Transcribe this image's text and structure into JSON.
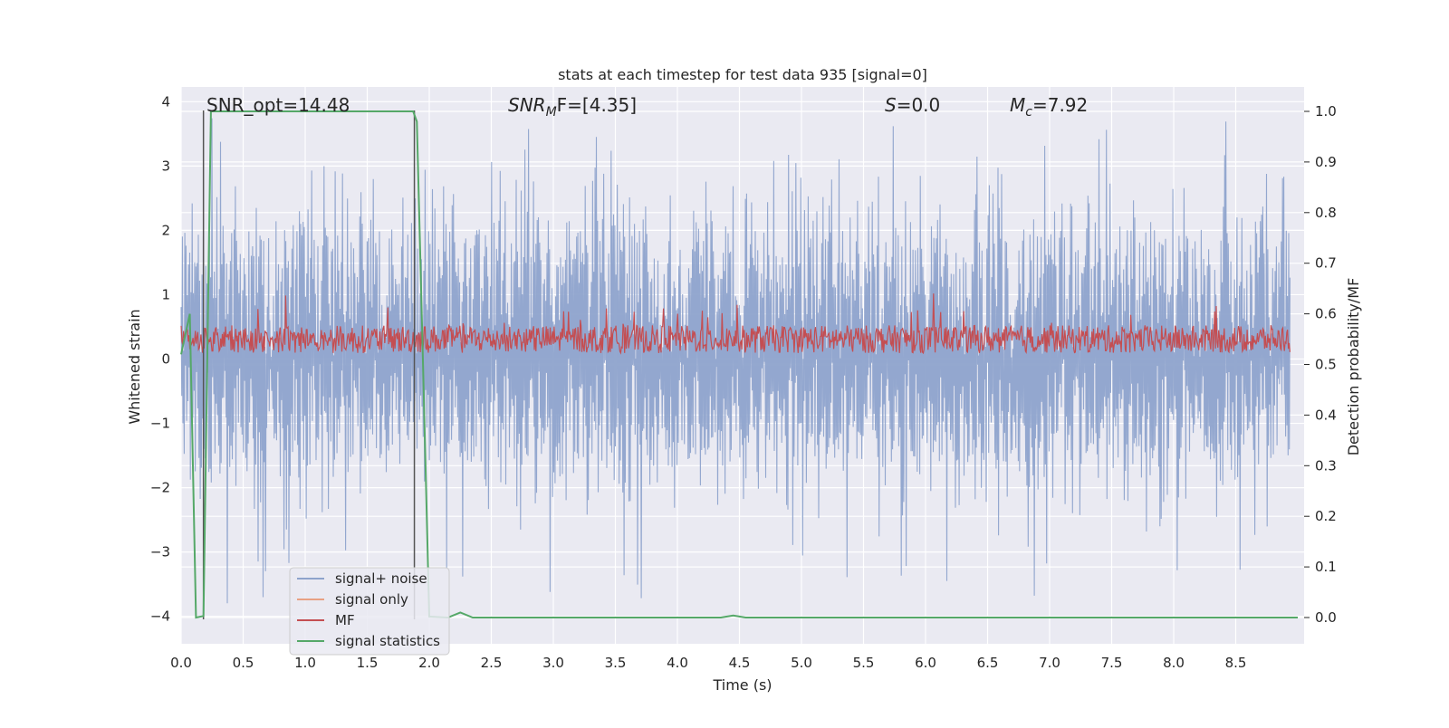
{
  "chart_data": {
    "type": "line",
    "title": "stats at each timestep for test data 935 [signal=0]",
    "xlabel": "Time (s)",
    "ylabel_left": "Whitened strain",
    "ylabel_right": "Detection probability/MF",
    "xlim": [
      0.0,
      9.0
    ],
    "ylim_left": [
      -4.2,
      4.2
    ],
    "ylim_right": [
      -0.05,
      1.04
    ],
    "x_ticks": [
      0.0,
      0.5,
      1.0,
      1.5,
      2.0,
      2.5,
      3.0,
      3.5,
      4.0,
      4.5,
      5.0,
      5.5,
      6.0,
      6.5,
      7.0,
      7.5,
      8.0,
      8.5
    ],
    "x_tick_labels": [
      "0.0",
      "0.5",
      "1.0",
      "1.5",
      "2.0",
      "2.5",
      "3.0",
      "3.5",
      "4.0",
      "4.5",
      "5.0",
      "5.5",
      "6.0",
      "6.5",
      "7.0",
      "7.5",
      "8.0",
      "8.5"
    ],
    "y_left_ticks": [
      4,
      3,
      2,
      1,
      0,
      -1,
      -2,
      -3,
      -4
    ],
    "y_left_tick_labels": [
      "4",
      "3",
      "2",
      "1",
      "0",
      "−1",
      "−2",
      "−3",
      "−4"
    ],
    "y_right_ticks": [
      1.0,
      0.9,
      0.8,
      0.7,
      0.6,
      0.5,
      0.4,
      0.3,
      0.2,
      0.1,
      0.0
    ],
    "y_right_tick_labels": [
      "1.0",
      "0.9",
      "0.8",
      "0.7",
      "0.6",
      "0.5",
      "0.4",
      "0.3",
      "0.2",
      "0.1",
      "0.0"
    ],
    "grid": true,
    "legend_position": "lower-left",
    "annotations": {
      "snr_opt": "SNR_opt=14.48",
      "snr_mf_sym": "SNR",
      "snr_mf_sub": "M",
      "snr_mf_rest": "F=[4.35]",
      "s_sym": "S",
      "s_rest": "=0.0",
      "mc_sym": "M",
      "mc_sub": "c",
      "mc_rest": "=7.92"
    },
    "series": [
      {
        "name": "signal+ noise",
        "color": "#8ea3cc",
        "axis": "left",
        "description": "whitened noisy strain, oscillating roughly between -2 and +2.3 with spikes to about +/-3.8",
        "envelope_upper": 2.3,
        "envelope_lower": -2.0
      },
      {
        "name": "signal only",
        "color": "#e8a183",
        "axis": "left"
      },
      {
        "name": "MF",
        "color": "#c44e52",
        "axis": "right",
        "description": "matched filter output fluctuating around 0.55 (range about 0.51 to 0.62)",
        "baseline": 0.55
      },
      {
        "name": "signal statistics",
        "color": "#55a868",
        "axis": "right",
        "x": [
          0.0,
          0.07,
          0.12,
          0.18,
          0.24,
          0.5,
          1.0,
          1.5,
          1.87,
          1.9,
          1.95,
          2.0,
          2.15,
          2.25,
          2.35,
          3.0,
          4.0,
          4.35,
          4.45,
          4.55,
          5.0,
          6.0,
          7.0,
          8.0,
          9.0
        ],
        "y": [
          0.52,
          0.6,
          0.0,
          0.003,
          1.0,
          1.0,
          1.0,
          1.0,
          1.0,
          0.98,
          0.5,
          0.002,
          0.0,
          0.01,
          0.0,
          0.0,
          0.0,
          0.0,
          0.004,
          0.0,
          0.0,
          0.0,
          0.0,
          0.0,
          0.0
        ]
      }
    ],
    "vertical_markers": [
      0.18,
      1.88
    ]
  },
  "palette": {
    "plot_bg": "#eaeaf2",
    "grid": "#ffffff",
    "marker_line": "#555555"
  }
}
